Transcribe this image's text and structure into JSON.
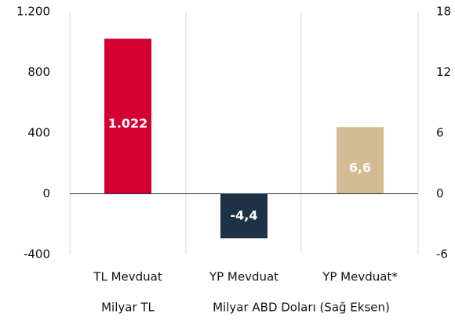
{
  "chart_data": {
    "type": "bar",
    "categories": [
      "TL Mevduat",
      "YP Mevduat",
      "YP Mevduat*"
    ],
    "values": [
      1022,
      -4.4,
      6.6
    ],
    "value_labels": [
      "1.022",
      "-4,4",
      "6,6"
    ],
    "colors": [
      "#d50032",
      "#1e3246",
      "#d3bc94"
    ],
    "axes": [
      "y",
      "y2",
      "y2"
    ],
    "ylim": [
      -400,
      1200
    ],
    "yticks": [
      -400,
      0,
      400,
      800,
      {
        "value": 1200,
        "label": "1.200"
      }
    ],
    "y2lim": [
      -6,
      18
    ],
    "y2ticks": [
      -6,
      0,
      6,
      12,
      18
    ],
    "annotations": [
      "Milyar TL",
      "Milyar ABD Doları (Sağ Eksen)"
    ]
  }
}
